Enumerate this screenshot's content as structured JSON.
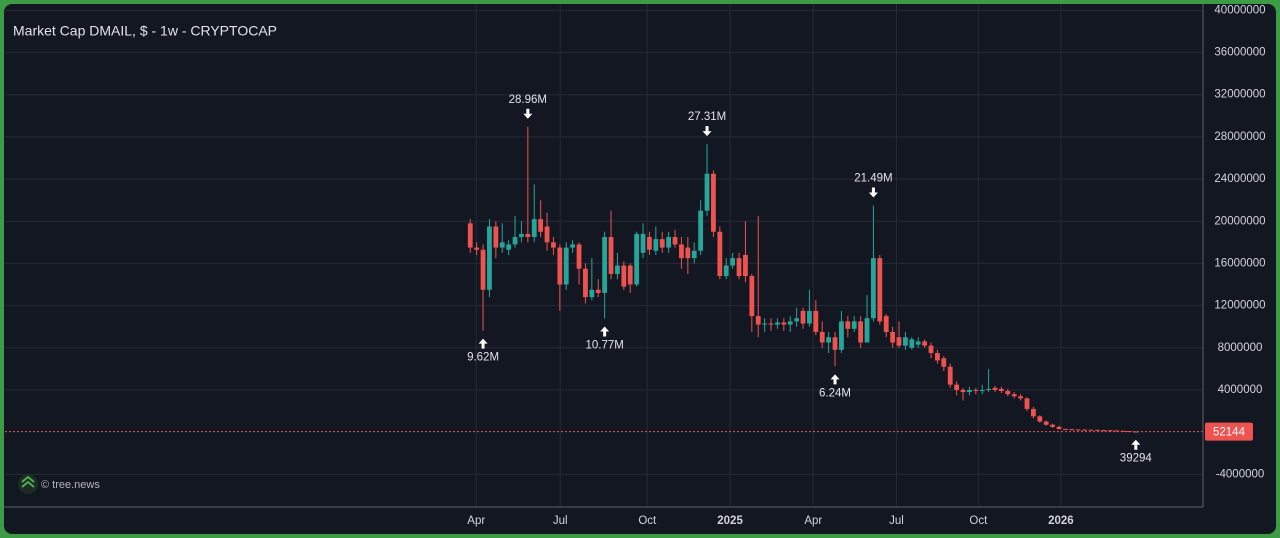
{
  "chart_data": {
    "type": "candlestick",
    "title": "Market Cap DMAIL, $ - 1w - CRYPTOCAP",
    "watermark": "© tree.news",
    "up_color": "#26a69a",
    "down_color": "#ef5350",
    "grid": true,
    "ylim": [
      -7100000,
      40600000
    ],
    "yticks": [
      -4000000,
      4000000,
      8000000,
      12000000,
      16000000,
      20000000,
      24000000,
      28000000,
      32000000,
      36000000,
      40000000
    ],
    "xlim": [
      -72.7,
      114.5
    ],
    "xticks": [
      {
        "value": 0.94,
        "label": "Apr"
      },
      {
        "value": 14.06,
        "label": "Jul"
      },
      {
        "value": 27.66,
        "label": "Oct"
      },
      {
        "value": 40.6,
        "label": "2025"
      },
      {
        "value": 53.6,
        "label": "Apr"
      },
      {
        "value": 66.6,
        "label": "Jul"
      },
      {
        "value": 79.4,
        "label": "Oct"
      },
      {
        "value": 92.3,
        "label": "2026"
      }
    ],
    "open": [
      19800000,
      17500000,
      17300000,
      13500000,
      19500000,
      17500000,
      17300000,
      17800000,
      18500000,
      18800000,
      18500000,
      20200000,
      19500000,
      18000000,
      17500000,
      14000000,
      17500000,
      17800000,
      15500000,
      12800000,
      13500000,
      13200000,
      18500000,
      15000000,
      15800000,
      15800000,
      14000000,
      17000000,
      18500000,
      17200000,
      18300000,
      17500000,
      18500000,
      17800000,
      17500000,
      16500000,
      17200000,
      21000000,
      24500000,
      19000000,
      14800000,
      15800000,
      16500000,
      16800000,
      14800000,
      11000000,
      10200000,
      10300000,
      10200000,
      10400000,
      10200000,
      10500000,
      11500000,
      10300000,
      11500000,
      9500000,
      8500000,
      9000000,
      7800000,
      10500000,
      9800000,
      10500000,
      8500000,
      10800000,
      16500000,
      11000000,
      9500000,
      9000000,
      8200000,
      8000000,
      8300000,
      8600000,
      8200000,
      7500000,
      7000000,
      6200000,
      4500000,
      4000000,
      3800000,
      4000000,
      3900000,
      4000000,
      4200000,
      4100000,
      3900000,
      3600000,
      3400000,
      3200000,
      2200000,
      1500000,
      1000000,
      700000,
      500000,
      300000,
      280000,
      250000,
      240000,
      230000,
      220000,
      200000,
      180000,
      160000,
      130000,
      100000,
      60000
    ],
    "high": [
      20200000,
      18000000,
      17800000,
      20200000,
      20000000,
      19800000,
      18200000,
      20500000,
      20000000,
      28960000,
      23500000,
      22000000,
      20800000,
      18500000,
      17800000,
      18000000,
      18200000,
      18000000,
      16000000,
      16500000,
      14500000,
      19000000,
      21000000,
      17000000,
      16200000,
      16000000,
      19000000,
      19800000,
      19000000,
      19500000,
      19000000,
      19000000,
      19200000,
      18500000,
      18500000,
      18000000,
      22000000,
      27310000,
      24800000,
      19500000,
      16500000,
      17000000,
      17000000,
      20000000,
      15000000,
      20500000,
      10800000,
      10800000,
      10800000,
      10800000,
      11000000,
      11800000,
      11800000,
      13500000,
      12500000,
      10500000,
      9500000,
      9500000,
      11500000,
      11000000,
      11000000,
      11000000,
      13000000,
      21490000,
      16800000,
      11200000,
      10000000,
      10500000,
      9500000,
      9000000,
      9000000,
      8800000,
      8500000,
      7800000,
      7200000,
      6500000,
      4800000,
      4200000,
      4300000,
      4200000,
      4500000,
      6000000,
      4400000,
      4300000,
      4100000,
      3800000,
      3600000,
      3300000,
      2400000,
      1600000,
      1100000,
      800000,
      600000,
      320000,
      300000,
      270000,
      260000,
      250000,
      230000,
      210000,
      190000,
      170000,
      140000,
      110000,
      70000
    ],
    "low": [
      17000000,
      16800000,
      9620000,
      12800000,
      16500000,
      17000000,
      16800000,
      17500000,
      18000000,
      18000000,
      18000000,
      18500000,
      17200000,
      16800000,
      11500000,
      13500000,
      17000000,
      14000000,
      12200000,
      12500000,
      12800000,
      10770000,
      14500000,
      14500000,
      13500000,
      13200000,
      13800000,
      16500000,
      16800000,
      16800000,
      17000000,
      17000000,
      17500000,
      15500000,
      15000000,
      16000000,
      16800000,
      20500000,
      18500000,
      14500000,
      14500000,
      15500000,
      14500000,
      14200000,
      9500000,
      9000000,
      9500000,
      9600000,
      9800000,
      9600000,
      9500000,
      10000000,
      9800000,
      10000000,
      9200000,
      8000000,
      7500000,
      6240000,
      7500000,
      9000000,
      9500000,
      8000000,
      8500000,
      10500000,
      10200000,
      9000000,
      8000000,
      8000000,
      7800000,
      7800000,
      8000000,
      8000000,
      7000000,
      6500000,
      5800000,
      4200000,
      3500000,
      3000000,
      3500000,
      3600000,
      3600000,
      3800000,
      3800000,
      3700000,
      3400000,
      3200000,
      3000000,
      2000000,
      1300000,
      900000,
      600000,
      400000,
      250000,
      250000,
      230000,
      220000,
      210000,
      200000,
      180000,
      160000,
      140000,
      120000,
      90000,
      50000,
      39294
    ],
    "close": [
      17500000,
      17300000,
      13500000,
      19500000,
      17500000,
      18000000,
      17800000,
      18500000,
      18800000,
      18500000,
      20200000,
      19000000,
      18000000,
      17500000,
      14000000,
      17500000,
      17800000,
      15500000,
      12800000,
      13500000,
      13200000,
      18500000,
      15000000,
      15800000,
      13800000,
      14000000,
      18800000,
      18800000,
      17300000,
      18300000,
      17500000,
      18500000,
      17800000,
      16500000,
      16500000,
      17200000,
      21000000,
      24500000,
      19000000,
      14800000,
      15800000,
      16500000,
      14800000,
      14800000,
      11000000,
      10200000,
      10300000,
      10200000,
      10400000,
      10200000,
      10500000,
      10800000,
      10300000,
      11500000,
      9500000,
      8500000,
      9000000,
      7800000,
      10500000,
      9800000,
      10500000,
      8500000,
      10800000,
      16500000,
      10500000,
      9500000,
      8500000,
      8200000,
      9000000,
      8800000,
      8600000,
      8200000,
      7500000,
      6800000,
      6200000,
      4500000,
      4000000,
      3800000,
      4000000,
      3900000,
      4000000,
      4100000,
      4000000,
      3900000,
      3600000,
      3400000,
      3200000,
      2200000,
      1500000,
      1000000,
      700000,
      500000,
      300000,
      280000,
      250000,
      240000,
      230000,
      220000,
      200000,
      180000,
      160000,
      130000,
      100000,
      60000,
      52144
    ],
    "annotations": [
      {
        "text": "28.96M",
        "value": 28960000,
        "side": "high"
      },
      {
        "text": "27.31M",
        "value": 27310000,
        "side": "high"
      },
      {
        "text": "21.49M",
        "value": 21490000,
        "side": "high"
      },
      {
        "text": "9.62M",
        "value": 9620000,
        "side": "low"
      },
      {
        "text": "10.77M",
        "value": 10770000,
        "side": "low"
      },
      {
        "text": "6.24M",
        "value": 6240000,
        "side": "low"
      },
      {
        "text": "39294",
        "value": 39294,
        "side": "low"
      }
    ]
  }
}
